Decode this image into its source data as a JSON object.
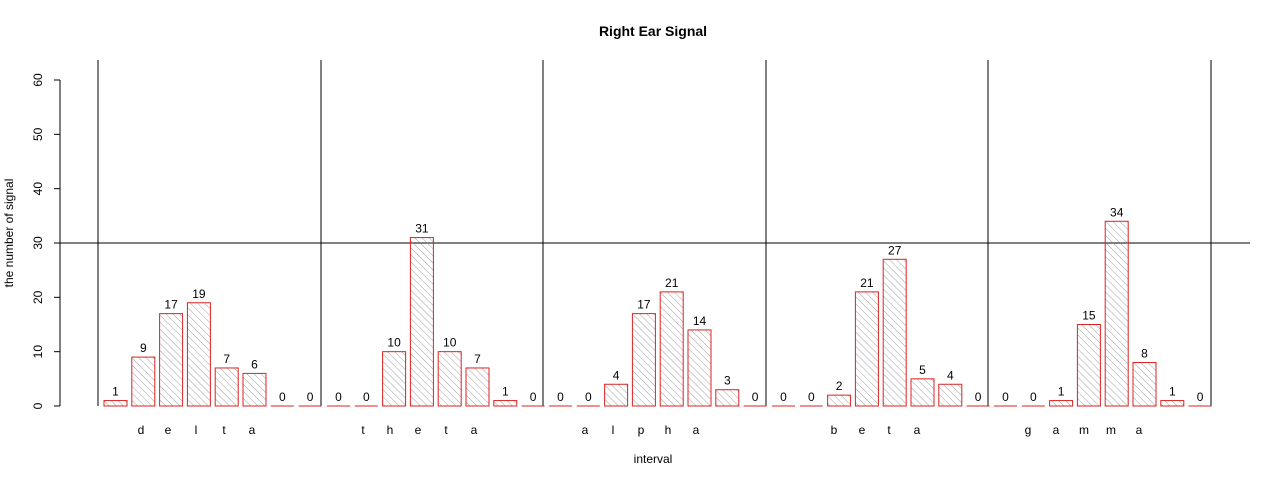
{
  "chart_data": {
    "type": "bar",
    "title": "Right Ear Signal",
    "xlabel": "interval",
    "ylabel": "the number of signal",
    "ylim": [
      0,
      60
    ],
    "yticks": [
      0,
      10,
      20,
      30,
      40,
      50,
      60
    ],
    "reference_line": 30,
    "bar_fill_pattern": "hatched",
    "colors": {
      "bar_border": "#dd2222",
      "hatch": "#888888",
      "axis": "#000000"
    },
    "groups": [
      {
        "letters": [
          "d",
          "e",
          "l",
          "t",
          "a"
        ],
        "values": [
          1,
          9,
          17,
          19,
          7,
          6,
          0,
          0
        ]
      },
      {
        "letters": [
          "t",
          "h",
          "e",
          "t",
          "a"
        ],
        "values": [
          0,
          0,
          10,
          31,
          10,
          7,
          1,
          0
        ]
      },
      {
        "letters": [
          "a",
          "l",
          "p",
          "h",
          "a"
        ],
        "values": [
          0,
          0,
          4,
          17,
          21,
          14,
          3,
          0
        ]
      },
      {
        "letters": [
          "b",
          "e",
          "t",
          "a"
        ],
        "values": [
          0,
          0,
          2,
          21,
          27,
          5,
          4,
          0
        ]
      },
      {
        "letters": [
          "g",
          "a",
          "m",
          "m",
          "a"
        ],
        "values": [
          0,
          0,
          1,
          15,
          34,
          8,
          1,
          0
        ]
      }
    ]
  }
}
